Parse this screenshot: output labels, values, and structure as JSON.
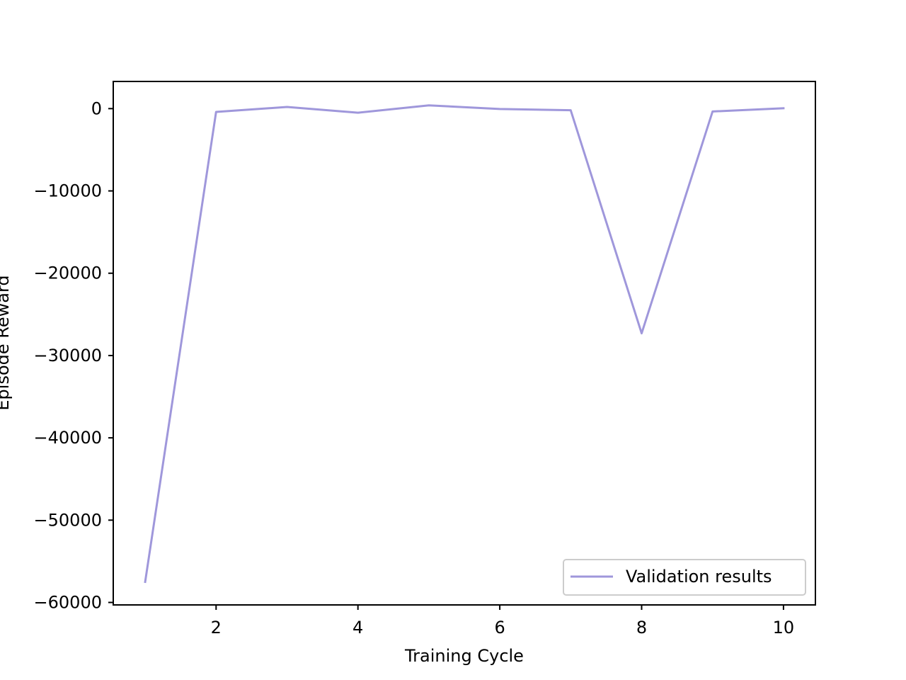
{
  "chart_data": {
    "type": "line",
    "title": "",
    "xlabel": "Training Cycle",
    "ylabel": "Episode Reward",
    "xlim": [
      0.55,
      10.45
    ],
    "ylim": [
      -60300,
      3300
    ],
    "xticks": [
      2,
      4,
      6,
      8,
      10
    ],
    "xtick_labels": [
      "2",
      "4",
      "6",
      "8",
      "10"
    ],
    "yticks": [
      0,
      -10000,
      -20000,
      -30000,
      -40000,
      -50000,
      -60000
    ],
    "ytick_labels": [
      "0",
      "−10000",
      "−20000",
      "−30000",
      "−40000",
      "−50000",
      "−60000"
    ],
    "grid": false,
    "legend_position": "lower-right",
    "series": [
      {
        "name": "Validation results",
        "color": "#9f97db",
        "x": [
          1,
          2,
          3,
          4,
          5,
          6,
          7,
          8,
          9,
          10
        ],
        "y": [
          -57500,
          -400,
          200,
          -500,
          400,
          -50,
          -200,
          -27300,
          -350,
          50
        ]
      }
    ]
  }
}
